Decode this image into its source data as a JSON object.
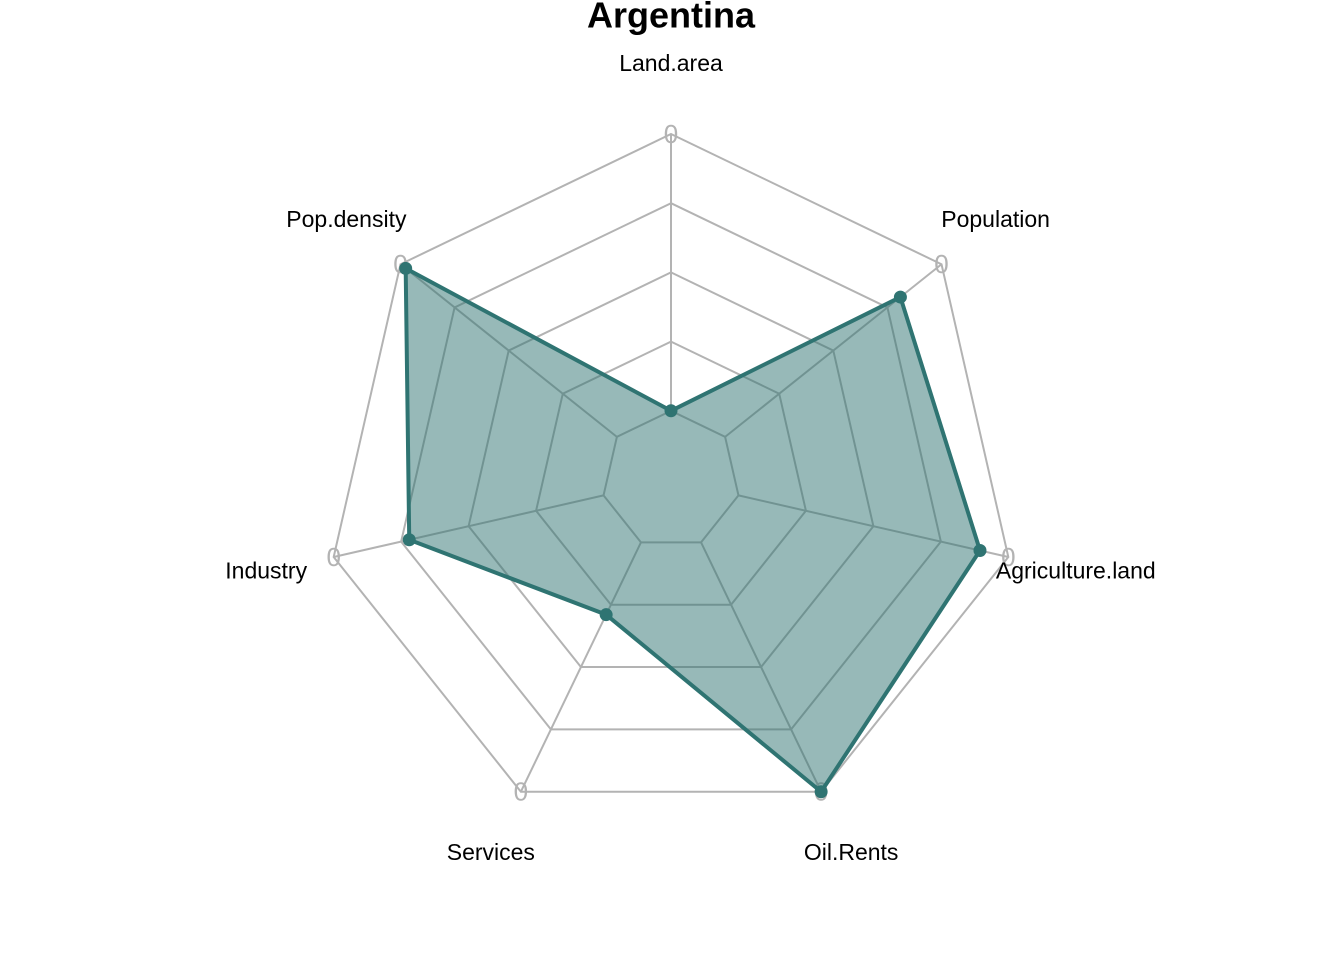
{
  "chart_data": {
    "type": "radar",
    "title": "Argentina",
    "categories": [
      "Land.area",
      "Population",
      "Agriculture.land",
      "Oil.Rents",
      "Services",
      "Industry",
      "Pop.density"
    ],
    "series": [
      {
        "name": "Argentina",
        "color": "#2f7472",
        "values": [
          0,
          81,
          89.5,
          100,
          29,
          72,
          97.6
        ]
      }
    ],
    "ylim": [
      0,
      100
    ],
    "yticks": [
      0,
      25,
      50,
      75,
      100
    ],
    "vertex_labels": [
      "0",
      "0",
      "0",
      "0",
      "0",
      "0",
      "0"
    ],
    "grid": true
  }
}
